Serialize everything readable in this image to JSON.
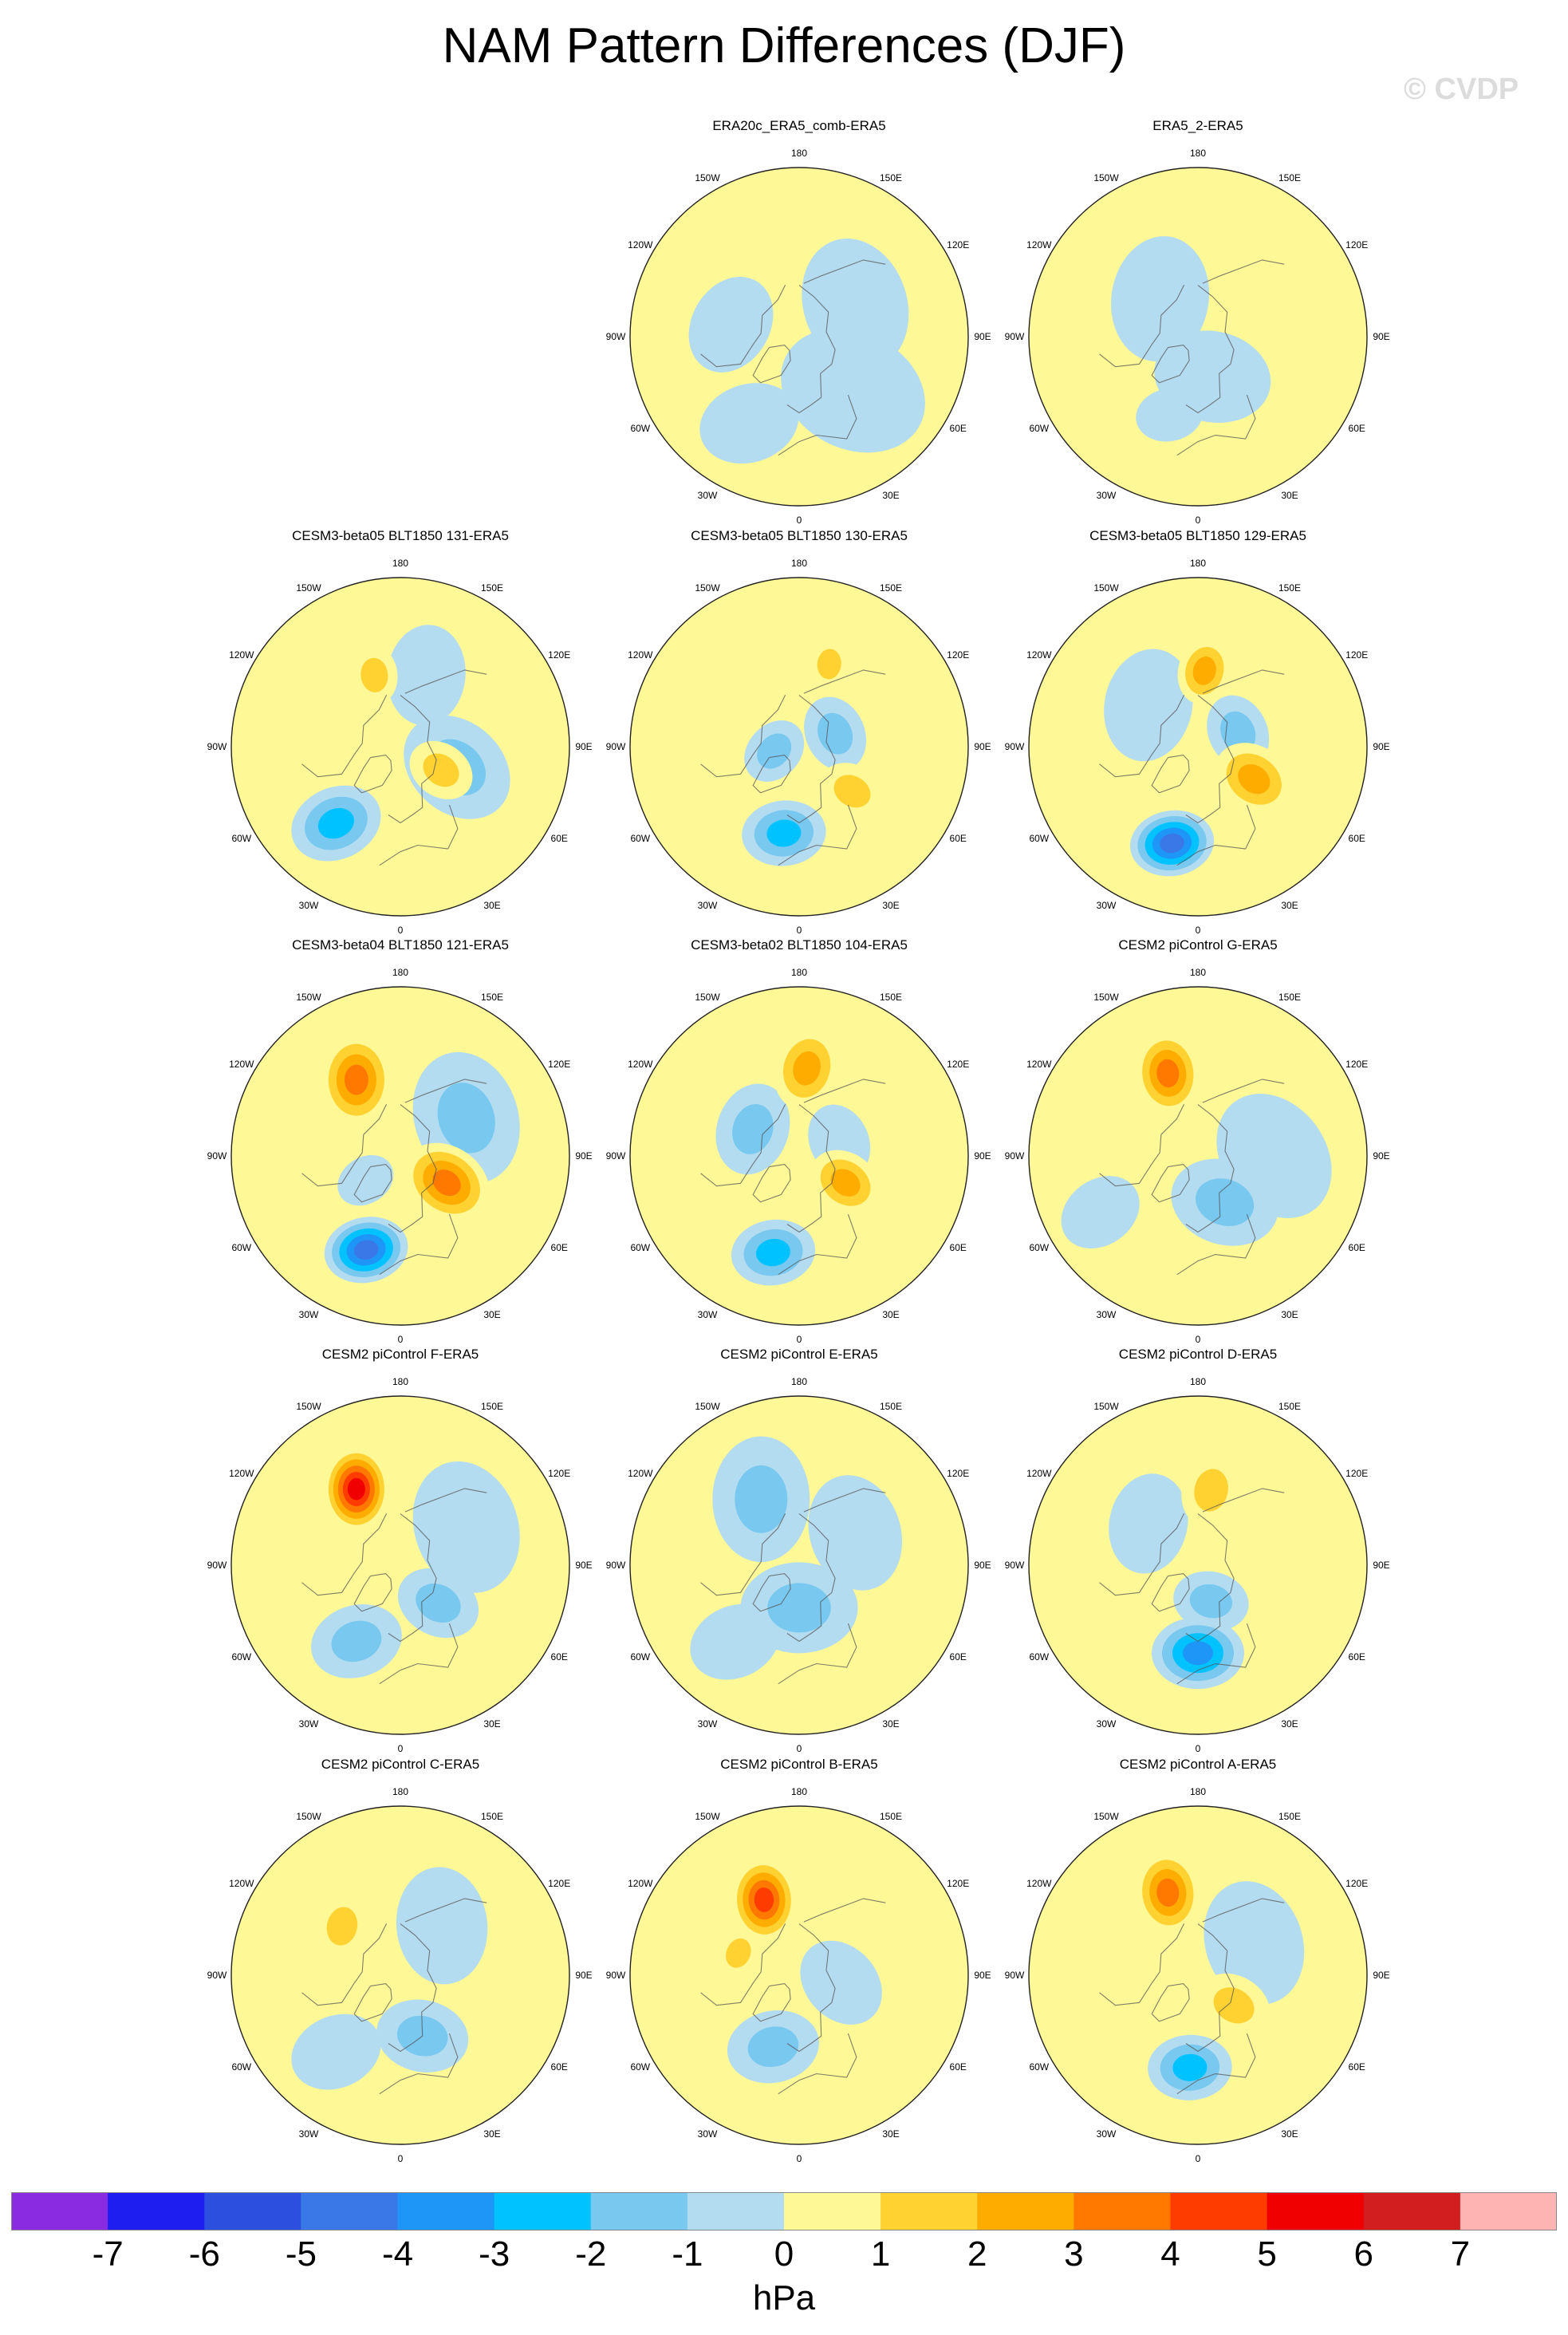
{
  "title": "NAM Pattern Differences (DJF)",
  "watermark": "© CVDP",
  "colorbar": {
    "colors": [
      "#8a2be2",
      "#1e1ef0",
      "#2c4fe0",
      "#3a78e8",
      "#1e96f8",
      "#00c2ff",
      "#78c8f0",
      "#b4dcf0",
      "#fff896",
      "#ffd232",
      "#ffac00",
      "#ff7800",
      "#ff3c00",
      "#f00000",
      "#d21e1e",
      "#ffb4b4"
    ],
    "labels": [
      "-7",
      "-6",
      "-5",
      "-4",
      "-3",
      "-2",
      "-1",
      "0",
      "1",
      "2",
      "3",
      "4",
      "5",
      "6",
      "7"
    ],
    "units": "hPa"
  },
  "longitude_labels": [
    "180",
    "150E",
    "120E",
    "90E",
    "60E",
    "30E",
    "0",
    "30W",
    "60W",
    "90W",
    "120W",
    "150W"
  ],
  "chart_data": {
    "type": "heatmap",
    "title": "NAM Pattern Differences (DJF)",
    "projection": "north-polar-stereographic",
    "variable": "NAM pattern difference",
    "units": "hPa",
    "levels": [
      -7,
      -6,
      -5,
      -4,
      -3,
      -2,
      -1,
      0,
      1,
      2,
      3,
      4,
      5,
      6,
      7
    ],
    "panels": [
      {
        "title": "ERA20c_ERA5_comb-ERA5",
        "max_positive": 1,
        "min_negative": -1,
        "features": [
          {
            "lon": 45,
            "lat": 55,
            "value": -1,
            "spread": 34
          },
          {
            "lon": 120,
            "lat": 60,
            "value": -1,
            "spread": 30
          },
          {
            "lon": -100,
            "lat": 58,
            "value": -1,
            "spread": 22
          },
          {
            "lon": -30,
            "lat": 45,
            "value": -1,
            "spread": 22
          }
        ]
      },
      {
        "title": "ERA5_2-ERA5",
        "max_positive": 1,
        "min_negative": -1,
        "features": [
          {
            "lon": -135,
            "lat": 65,
            "value": -1,
            "spread": 28
          },
          {
            "lon": 20,
            "lat": 70,
            "value": -1,
            "spread": 26
          },
          {
            "lon": -20,
            "lat": 52,
            "value": -1,
            "spread": 14
          }
        ]
      },
      {
        "title": "CESM3-beta05 BLT1850 131-ERA5",
        "max_positive": 2,
        "min_negative": -2,
        "features": [
          {
            "lon": -40,
            "lat": 45,
            "value": -2.2,
            "spread": 20
          },
          {
            "lon": 70,
            "lat": 62,
            "value": -1.5,
            "spread": 26
          },
          {
            "lon": 60,
            "lat": 68,
            "value": 1.8,
            "spread": 14
          },
          {
            "lon": -160,
            "lat": 55,
            "value": 1.5,
            "spread": 12
          },
          {
            "lon": 160,
            "lat": 55,
            "value": -1,
            "spread": 22
          }
        ]
      },
      {
        "title": "CESM3-beta05 BLT1850 130-ERA5",
        "max_positive": 2,
        "min_negative": -2,
        "features": [
          {
            "lon": -10,
            "lat": 50,
            "value": -2.3,
            "spread": 18
          },
          {
            "lon": 50,
            "lat": 58,
            "value": 1.8,
            "spread": 14
          },
          {
            "lon": 160,
            "lat": 50,
            "value": 1.6,
            "spread": 10
          },
          {
            "lon": 110,
            "lat": 72,
            "value": -1.6,
            "spread": 16
          },
          {
            "lon": -80,
            "lat": 78,
            "value": -1.2,
            "spread": 14
          }
        ]
      },
      {
        "title": "CESM3-beta05 BLT1850 129-ERA5",
        "max_positive": 3,
        "min_negative": -4,
        "features": [
          {
            "lon": -15,
            "lat": 45,
            "value": -4.5,
            "spread": 18
          },
          {
            "lon": 60,
            "lat": 60,
            "value": 3,
            "spread": 18
          },
          {
            "lon": 175,
            "lat": 55,
            "value": 2.2,
            "spread": 14
          },
          {
            "lon": 110,
            "lat": 70,
            "value": -1.5,
            "spread": 16
          },
          {
            "lon": -130,
            "lat": 60,
            "value": -0.8,
            "spread": 25
          }
        ]
      },
      {
        "title": "CESM3-beta04 BLT1850 121-ERA5",
        "max_positive": 3,
        "min_negative": -5,
        "features": [
          {
            "lon": -20,
            "lat": 45,
            "value": -5,
            "spread": 18
          },
          {
            "lon": 60,
            "lat": 65,
            "value": 3.2,
            "spread": 20
          },
          {
            "lon": -150,
            "lat": 50,
            "value": 3.2,
            "spread": 20
          },
          {
            "lon": 120,
            "lat": 55,
            "value": -1.5,
            "spread": 30
          },
          {
            "lon": -55,
            "lat": 70,
            "value": -1,
            "spread": 12
          }
        ]
      },
      {
        "title": "CESM3-beta02 BLT1850 104-ERA5",
        "max_positive": 3,
        "min_negative": -3,
        "features": [
          {
            "lon": -15,
            "lat": 45,
            "value": -3,
            "spread": 18
          },
          {
            "lon": 60,
            "lat": 65,
            "value": 3,
            "spread": 16
          },
          {
            "lon": 175,
            "lat": 50,
            "value": 2.4,
            "spread": 18
          },
          {
            "lon": -120,
            "lat": 65,
            "value": -1.2,
            "spread": 20
          },
          {
            "lon": 110,
            "lat": 70,
            "value": -1,
            "spread": 16
          }
        ]
      },
      {
        "title": "CESM2 piControl G-ERA5",
        "max_positive": 3,
        "min_negative": -2,
        "features": [
          {
            "lon": -160,
            "lat": 50,
            "value": 3.3,
            "spread": 18
          },
          {
            "lon": 30,
            "lat": 65,
            "value": -2,
            "spread": 24
          },
          {
            "lon": 90,
            "lat": 55,
            "value": -1,
            "spread": 30
          },
          {
            "lon": -60,
            "lat": 40,
            "value": -1,
            "spread": 18
          }
        ]
      },
      {
        "title": "CESM2 piControl F-ERA5",
        "max_positive": 5,
        "min_negative": -2,
        "features": [
          {
            "lon": -150,
            "lat": 50,
            "value": 5.2,
            "spread": 18
          },
          {
            "lon": -30,
            "lat": 50,
            "value": -2,
            "spread": 20
          },
          {
            "lon": 45,
            "lat": 65,
            "value": -2,
            "spread": 18
          },
          {
            "lon": 120,
            "lat": 55,
            "value": -1,
            "spread": 30
          }
        ]
      },
      {
        "title": "CESM2 piControl E-ERA5",
        "max_positive": 1,
        "min_negative": -2,
        "features": [
          {
            "lon": 0,
            "lat": 70,
            "value": -2,
            "spread": 26
          },
          {
            "lon": -40,
            "lat": 45,
            "value": -1,
            "spread": 20
          },
          {
            "lon": -150,
            "lat": 55,
            "value": -1.2,
            "spread": 28
          },
          {
            "lon": 120,
            "lat": 60,
            "value": -1,
            "spread": 26
          }
        ]
      },
      {
        "title": "CESM2 piControl D-ERA5",
        "max_positive": 2,
        "min_negative": -4,
        "features": [
          {
            "lon": 0,
            "lat": 50,
            "value": -4,
            "spread": 20
          },
          {
            "lon": 20,
            "lat": 72,
            "value": -1.8,
            "spread": 16
          },
          {
            "lon": 170,
            "lat": 55,
            "value": 2,
            "spread": 16
          },
          {
            "lon": -130,
            "lat": 60,
            "value": -1,
            "spread": 22
          }
        ]
      },
      {
        "title": "CESM2 piControl C-ERA5",
        "max_positive": 2,
        "min_negative": -2,
        "features": [
          {
            "lon": 20,
            "lat": 60,
            "value": -2,
            "spread": 20
          },
          {
            "lon": -130,
            "lat": 55,
            "value": 1.5,
            "spread": 14
          },
          {
            "lon": 140,
            "lat": 60,
            "value": -1,
            "spread": 26
          },
          {
            "lon": -40,
            "lat": 45,
            "value": -1,
            "spread": 20
          }
        ]
      },
      {
        "title": "CESM2 piControl B-ERA5",
        "max_positive": 5,
        "min_negative": -2,
        "features": [
          {
            "lon": -155,
            "lat": 52,
            "value": 5,
            "spread": 18
          },
          {
            "lon": -20,
            "lat": 55,
            "value": -2,
            "spread": 20
          },
          {
            "lon": 80,
            "lat": 70,
            "value": -1,
            "spread": 20
          },
          {
            "lon": -110,
            "lat": 60,
            "value": 1.5,
            "spread": 10
          }
        ]
      },
      {
        "title": "CESM2 piControl A-ERA5",
        "max_positive": 4,
        "min_negative": -3,
        "features": [
          {
            "lon": -160,
            "lat": 50,
            "value": 4,
            "spread": 18
          },
          {
            "lon": -5,
            "lat": 48,
            "value": -3,
            "spread": 18
          },
          {
            "lon": 50,
            "lat": 68,
            "value": 2,
            "spread": 16
          },
          {
            "lon": 120,
            "lat": 60,
            "value": -1,
            "spread": 28
          }
        ]
      }
    ]
  }
}
